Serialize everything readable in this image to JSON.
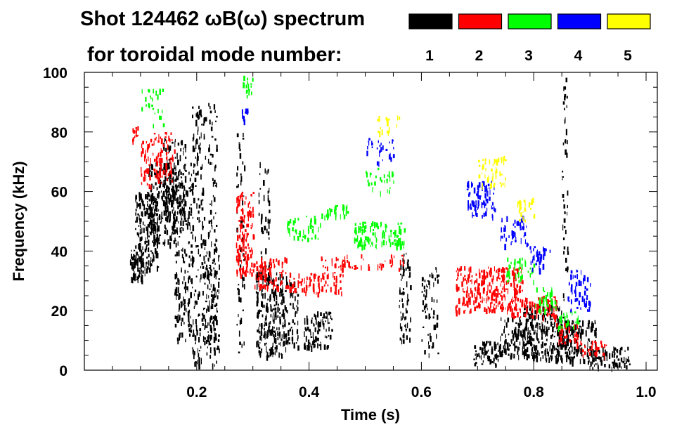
{
  "header": {
    "title_line1": "Shot 124462 ωB(ω) spectrum",
    "title_line2": "for toroidal mode number:"
  },
  "legend": [
    {
      "label": "1",
      "color": "#000000"
    },
    {
      "label": "2",
      "color": "#ff0000"
    },
    {
      "label": "3",
      "color": "#00ff00"
    },
    {
      "label": "4",
      "color": "#0000ff"
    },
    {
      "label": "5",
      "color": "#ffff00"
    }
  ],
  "chart_data": {
    "type": "heatmap",
    "title": "Shot 124462 ωB(ω) spectrum for toroidal mode number",
    "xlabel": "Time (s)",
    "ylabel": "Frequency (kHz)",
    "xlim": [
      0.0,
      1.02
    ],
    "ylim": [
      0,
      100
    ],
    "x_ticks": [
      0.2,
      0.4,
      0.6,
      0.8,
      1.0
    ],
    "x_tick_labels": [
      "0.2",
      "0.4",
      "0.6",
      "0.8",
      "1.0"
    ],
    "y_ticks": [
      0,
      20,
      40,
      60,
      80,
      100
    ],
    "y_tick_labels": [
      "0",
      "20",
      "40",
      "60",
      "80",
      "100"
    ],
    "modes": [
      {
        "n": "1",
        "color": "#000000",
        "blobs": [
          {
            "t0": 0.08,
            "t1": 0.11,
            "f0": 30,
            "f1": 42,
            "d": 0.9
          },
          {
            "t0": 0.09,
            "t1": 0.13,
            "f0": 34,
            "f1": 60,
            "d": 0.9
          },
          {
            "t0": 0.11,
            "t1": 0.16,
            "f0": 42,
            "f1": 70,
            "d": 0.85
          },
          {
            "t0": 0.14,
            "t1": 0.18,
            "f0": 50,
            "f1": 78,
            "d": 0.7
          },
          {
            "t0": 0.16,
            "t1": 0.19,
            "f0": 10,
            "f1": 70,
            "d": 0.5
          },
          {
            "t0": 0.19,
            "t1": 0.215,
            "f0": 2,
            "f1": 90,
            "d": 0.45
          },
          {
            "t0": 0.215,
            "t1": 0.24,
            "f0": 5,
            "f1": 40,
            "d": 0.6
          },
          {
            "t0": 0.22,
            "t1": 0.235,
            "f0": 2,
            "f1": 90,
            "d": 0.35
          },
          {
            "t0": 0.27,
            "t1": 0.285,
            "f0": 5,
            "f1": 85,
            "d": 0.25
          },
          {
            "t0": 0.305,
            "t1": 0.36,
            "f0": 5,
            "f1": 33,
            "d": 0.9
          },
          {
            "t0": 0.31,
            "t1": 0.33,
            "f0": 30,
            "f1": 70,
            "d": 0.3
          },
          {
            "t0": 0.36,
            "t1": 0.38,
            "f0": 8,
            "f1": 30,
            "d": 0.5
          },
          {
            "t0": 0.39,
            "t1": 0.44,
            "f0": 8,
            "f1": 20,
            "d": 0.85
          },
          {
            "t0": 0.56,
            "t1": 0.58,
            "f0": 10,
            "f1": 40,
            "d": 0.5
          },
          {
            "t0": 0.6,
            "t1": 0.63,
            "f0": 5,
            "f1": 35,
            "d": 0.35
          },
          {
            "t0": 0.69,
            "t1": 0.74,
            "f0": 2,
            "f1": 10,
            "d": 0.9
          },
          {
            "t0": 0.74,
            "t1": 0.8,
            "f0": 5,
            "f1": 18,
            "d": 0.8
          },
          {
            "t0": 0.78,
            "t1": 0.85,
            "f0": 4,
            "f1": 22,
            "d": 0.9
          },
          {
            "t0": 0.84,
            "t1": 0.91,
            "f0": 3,
            "f1": 17,
            "d": 0.9
          },
          {
            "t0": 0.9,
            "t1": 0.97,
            "f0": 1,
            "f1": 8,
            "d": 0.85
          },
          {
            "t0": 0.85,
            "t1": 0.86,
            "f0": 0,
            "f1": 100,
            "d": 0.3
          }
        ]
      },
      {
        "n": "2",
        "color": "#ff0000",
        "blobs": [
          {
            "t0": 0.085,
            "t1": 0.095,
            "f0": 77,
            "f1": 82,
            "d": 0.8
          },
          {
            "t0": 0.1,
            "t1": 0.16,
            "f0": 62,
            "f1": 80,
            "d": 0.6
          },
          {
            "t0": 0.27,
            "t1": 0.3,
            "f0": 32,
            "f1": 60,
            "d": 0.85
          },
          {
            "t0": 0.3,
            "t1": 0.36,
            "f0": 28,
            "f1": 38,
            "d": 0.8
          },
          {
            "t0": 0.36,
            "t1": 0.46,
            "f0": 26,
            "f1": 33,
            "d": 0.7
          },
          {
            "t0": 0.42,
            "t1": 0.57,
            "f0": 34,
            "f1": 39,
            "d": 0.4
          },
          {
            "t0": 0.66,
            "t1": 0.78,
            "f0": 20,
            "f1": 35,
            "d": 0.9
          },
          {
            "t0": 0.76,
            "t1": 0.84,
            "f0": 18,
            "f1": 25,
            "d": 0.8
          },
          {
            "t0": 0.84,
            "t1": 0.88,
            "f0": 9,
            "f1": 16,
            "d": 0.6
          },
          {
            "t0": 0.88,
            "t1": 0.93,
            "f0": 5,
            "f1": 10,
            "d": 0.5
          }
        ]
      },
      {
        "n": "3",
        "color": "#00ff00",
        "blobs": [
          {
            "t0": 0.36,
            "t1": 0.42,
            "f0": 44,
            "f1": 52,
            "d": 0.5
          },
          {
            "t0": 0.42,
            "t1": 0.47,
            "f0": 52,
            "f1": 56,
            "d": 0.6
          },
          {
            "t0": 0.48,
            "t1": 0.57,
            "f0": 42,
            "f1": 50,
            "d": 0.9
          },
          {
            "t0": 0.5,
            "t1": 0.55,
            "f0": 60,
            "f1": 68,
            "d": 0.3
          },
          {
            "t0": 0.75,
            "t1": 0.8,
            "f0": 30,
            "f1": 38,
            "d": 0.5
          },
          {
            "t0": 0.8,
            "t1": 0.84,
            "f0": 20,
            "f1": 28,
            "d": 0.5
          },
          {
            "t0": 0.84,
            "t1": 0.88,
            "f0": 14,
            "f1": 20,
            "d": 0.5
          },
          {
            "t0": 0.28,
            "t1": 0.3,
            "f0": 92,
            "f1": 99,
            "d": 0.4
          },
          {
            "t0": 0.1,
            "t1": 0.14,
            "f0": 82,
            "f1": 95,
            "d": 0.2
          }
        ]
      },
      {
        "n": "4",
        "color": "#0000ff",
        "blobs": [
          {
            "t0": 0.68,
            "t1": 0.73,
            "f0": 52,
            "f1": 64,
            "d": 0.7
          },
          {
            "t0": 0.74,
            "t1": 0.79,
            "f0": 42,
            "f1": 52,
            "d": 0.5
          },
          {
            "t0": 0.79,
            "t1": 0.83,
            "f0": 34,
            "f1": 42,
            "d": 0.5
          },
          {
            "t0": 0.86,
            "t1": 0.9,
            "f0": 20,
            "f1": 34,
            "d": 0.5
          },
          {
            "t0": 0.5,
            "t1": 0.55,
            "f0": 70,
            "f1": 78,
            "d": 0.3
          },
          {
            "t0": 0.28,
            "t1": 0.29,
            "f0": 84,
            "f1": 88,
            "d": 0.8
          }
        ]
      },
      {
        "n": "5",
        "color": "#ffff00",
        "blobs": [
          {
            "t0": 0.7,
            "t1": 0.75,
            "f0": 62,
            "f1": 72,
            "d": 0.5
          },
          {
            "t0": 0.77,
            "t1": 0.8,
            "f0": 50,
            "f1": 58,
            "d": 0.4
          },
          {
            "t0": 0.52,
            "t1": 0.56,
            "f0": 80,
            "f1": 86,
            "d": 0.3
          }
        ]
      }
    ]
  }
}
